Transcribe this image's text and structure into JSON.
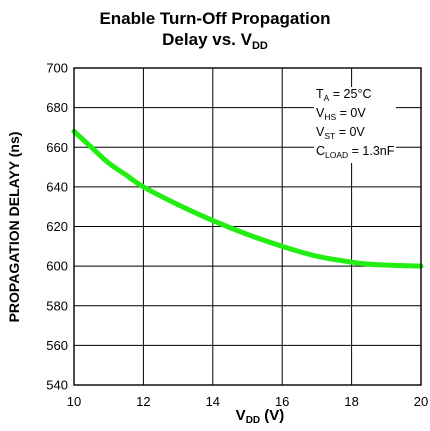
{
  "chart_data": {
    "type": "line",
    "title_line1": "Enable Turn-Off Propagation",
    "title_line2_prefix": "Delay vs. V",
    "title_line2_sub": "DD",
    "xlabel_prefix": "V",
    "xlabel_sub": "DD",
    "xlabel_suffix": " (V)",
    "ylabel": "PROPAGATION DELAYY (ns)",
    "xlim": [
      10,
      20
    ],
    "ylim": [
      540,
      700
    ],
    "xticks": [
      10,
      12,
      14,
      16,
      18,
      20
    ],
    "yticks": [
      540,
      560,
      580,
      600,
      620,
      640,
      660,
      680,
      700
    ],
    "grid": true,
    "series": [
      {
        "color": "#22ee11",
        "x": [
          10,
          10.5,
          11,
          11.5,
          12,
          13,
          14,
          15,
          16,
          17,
          18,
          18.5,
          19,
          20
        ],
        "y": [
          668,
          660,
          652,
          646,
          640,
          631,
          623,
          616,
          610,
          605,
          602,
          601,
          600.5,
          600
        ]
      }
    ],
    "conditions": [
      {
        "main": "T",
        "sub": "A",
        "rest": " = 25°C"
      },
      {
        "main": "V",
        "sub": "HS",
        "rest": " = 0V"
      },
      {
        "main": "V",
        "sub": "ST",
        "rest": " = 0V"
      },
      {
        "main": "C",
        "sub": "LOAD",
        "rest": " = 1.3nF"
      }
    ]
  }
}
